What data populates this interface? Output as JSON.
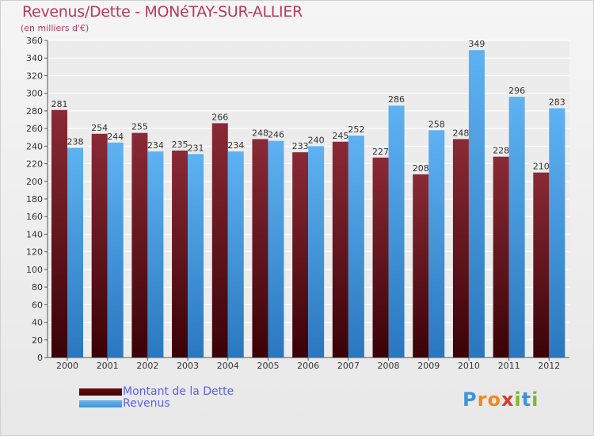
{
  "colors": {
    "dette": "#6b0a12",
    "revenus": "#3f93dc",
    "title": "#b73a5c",
    "legend_text": "#5a5ef0"
  },
  "chart_data": {
    "type": "bar",
    "title": "Revenus/Dette - MONéTAY-SUR-ALLIER",
    "subtitle": "(en milliers d'€)",
    "categories": [
      "2000",
      "2001",
      "2002",
      "2003",
      "2004",
      "2005",
      "2006",
      "2007",
      "2008",
      "2009",
      "2010",
      "2011",
      "2012"
    ],
    "series": [
      {
        "name": "Montant de la Dette",
        "values": [
          281,
          254,
          255,
          235,
          266,
          248,
          233,
          245,
          227,
          208,
          248,
          228,
          210
        ]
      },
      {
        "name": "Revenus",
        "values": [
          238,
          244,
          234,
          231,
          234,
          246,
          240,
          252,
          286,
          258,
          349,
          296,
          283
        ]
      }
    ],
    "ylim": [
      0,
      360
    ],
    "yticks": [
      0,
      20,
      40,
      60,
      80,
      100,
      120,
      140,
      160,
      180,
      200,
      220,
      240,
      260,
      280,
      300,
      320,
      340,
      360
    ],
    "grid": true,
    "legend": "bottom-left"
  },
  "logo": {
    "text": "Proxiti",
    "letters": [
      {
        "ch": "P",
        "color": "#3f93dc"
      },
      {
        "ch": "r",
        "color": "#f08a1c"
      },
      {
        "ch": "o",
        "color": "#f08a1c"
      },
      {
        "ch": "x",
        "color": "#d93a2a"
      },
      {
        "ch": "i",
        "color": "#7cb82f"
      },
      {
        "ch": "t",
        "color": "#3f93dc"
      },
      {
        "ch": "i",
        "color": "#7cb82f"
      }
    ]
  }
}
